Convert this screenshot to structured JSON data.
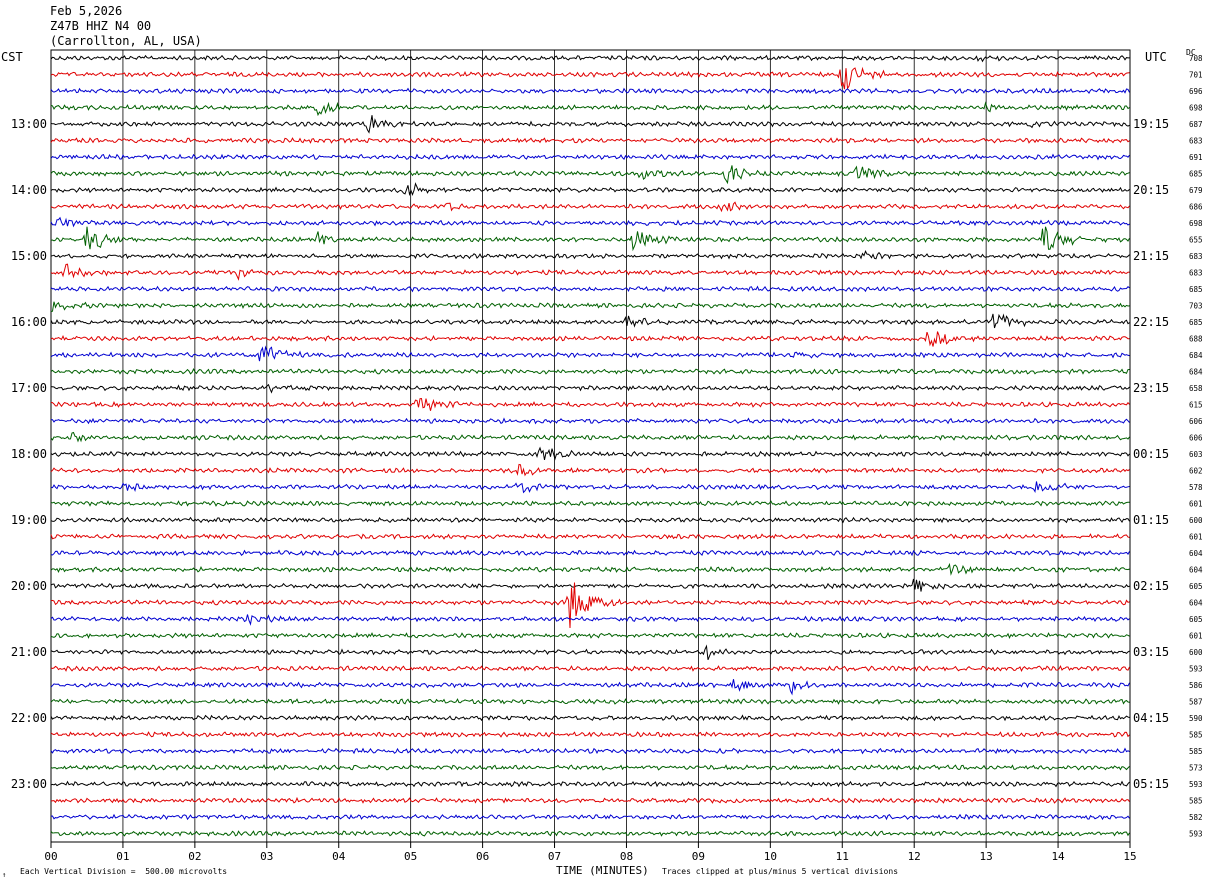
{
  "header": {
    "date": "Feb 5,2026",
    "channel": "Z47B HHZ N4 00",
    "location": "(Carrollton, AL, USA)"
  },
  "labels": {
    "left_timezone": "CST",
    "right_timezone": "UTC",
    "dc": "DC"
  },
  "footer": {
    "scale_text": "Each Vertical Division =  500.00 microvolts",
    "xlabel": "TIME (MINUTES)",
    "clip_text": "Traces clipped at plus/minus 5 vertical divisions",
    "icon": "↑"
  },
  "colors": [
    "#000000",
    "#e00000",
    "#0000d0",
    "#006000"
  ],
  "chart_data": {
    "type": "line",
    "title": "Z47B HHZ N4 00",
    "xlabel": "TIME (MINUTES)",
    "x_ticks": [
      "00",
      "01",
      "02",
      "03",
      "04",
      "05",
      "06",
      "07",
      "08",
      "09",
      "10",
      "11",
      "12",
      "13",
      "14",
      "15"
    ],
    "xlim": [
      0,
      15
    ],
    "trace_minutes": 15,
    "left_time_labels": [
      "13:00",
      "14:00",
      "15:00",
      "16:00",
      "17:00",
      "18:00",
      "19:00",
      "20:00",
      "21:00",
      "22:00",
      "23:00"
    ],
    "right_time_labels": [
      "19:15",
      "20:15",
      "21:15",
      "22:15",
      "23:15",
      "00:15",
      "01:15",
      "02:15",
      "03:15",
      "04:15",
      "05:15"
    ],
    "label_first_row": 4,
    "label_every_rows": 4,
    "dc_offsets": [
      708,
      701,
      696,
      698,
      687,
      683,
      691,
      685,
      679,
      686,
      698,
      655,
      683,
      683,
      685,
      703,
      685,
      688,
      684,
      684,
      658,
      615,
      606,
      606,
      603,
      602,
      578,
      601,
      600,
      601,
      604,
      604,
      605,
      604,
      605,
      601,
      600,
      593,
      586,
      587,
      590,
      585,
      585,
      573,
      593,
      585,
      582,
      593
    ],
    "events": [
      {
        "row": 0,
        "minute": 12.9,
        "amp": 4
      },
      {
        "row": 1,
        "minute": 11.0,
        "amp": 18
      },
      {
        "row": 3,
        "minute": 3.7,
        "amp": 7
      },
      {
        "row": 3,
        "minute": 13.0,
        "amp": 5
      },
      {
        "row": 4,
        "minute": 4.4,
        "amp": 10
      },
      {
        "row": 4,
        "minute": 13.6,
        "amp": 5
      },
      {
        "row": 7,
        "minute": 8.2,
        "amp": 7
      },
      {
        "row": 7,
        "minute": 9.4,
        "amp": 11
      },
      {
        "row": 7,
        "minute": 11.2,
        "amp": 8
      },
      {
        "row": 8,
        "minute": 4.9,
        "amp": 10
      },
      {
        "row": 9,
        "minute": 5.5,
        "amp": 5
      },
      {
        "row": 9,
        "minute": 9.3,
        "amp": 5
      },
      {
        "row": 10,
        "minute": 0.1,
        "amp": 6
      },
      {
        "row": 11,
        "minute": 0.5,
        "amp": 14
      },
      {
        "row": 11,
        "minute": 3.7,
        "amp": 8
      },
      {
        "row": 11,
        "minute": 8.1,
        "amp": 12
      },
      {
        "row": 11,
        "minute": 13.8,
        "amp": 18
      },
      {
        "row": 12,
        "minute": 11.3,
        "amp": 5
      },
      {
        "row": 13,
        "minute": 0.2,
        "amp": 8
      },
      {
        "row": 13,
        "minute": 2.6,
        "amp": 6
      },
      {
        "row": 15,
        "minute": 0.0,
        "amp": 8
      },
      {
        "row": 16,
        "minute": 8.0,
        "amp": 5
      },
      {
        "row": 16,
        "minute": 13.1,
        "amp": 11
      },
      {
        "row": 17,
        "minute": 12.2,
        "amp": 10
      },
      {
        "row": 18,
        "minute": 2.9,
        "amp": 13
      },
      {
        "row": 18,
        "minute": 10.3,
        "amp": 5
      },
      {
        "row": 20,
        "minute": 3.0,
        "amp": 4
      },
      {
        "row": 21,
        "minute": 5.1,
        "amp": 10
      },
      {
        "row": 23,
        "minute": 0.3,
        "amp": 5
      },
      {
        "row": 24,
        "minute": 6.8,
        "amp": 10
      },
      {
        "row": 25,
        "minute": 6.5,
        "amp": 9
      },
      {
        "row": 26,
        "minute": 6.5,
        "amp": 8
      },
      {
        "row": 26,
        "minute": 13.7,
        "amp": 7
      },
      {
        "row": 26,
        "minute": 1.0,
        "amp": 5
      },
      {
        "row": 31,
        "minute": 12.5,
        "amp": 5
      },
      {
        "row": 32,
        "minute": 12.0,
        "amp": 7
      },
      {
        "row": 33,
        "minute": 7.2,
        "amp": 26
      },
      {
        "row": 34,
        "minute": 2.7,
        "amp": 6
      },
      {
        "row": 36,
        "minute": 9.1,
        "amp": 8
      },
      {
        "row": 38,
        "minute": 9.5,
        "amp": 7
      },
      {
        "row": 38,
        "minute": 10.3,
        "amp": 8
      }
    ]
  }
}
